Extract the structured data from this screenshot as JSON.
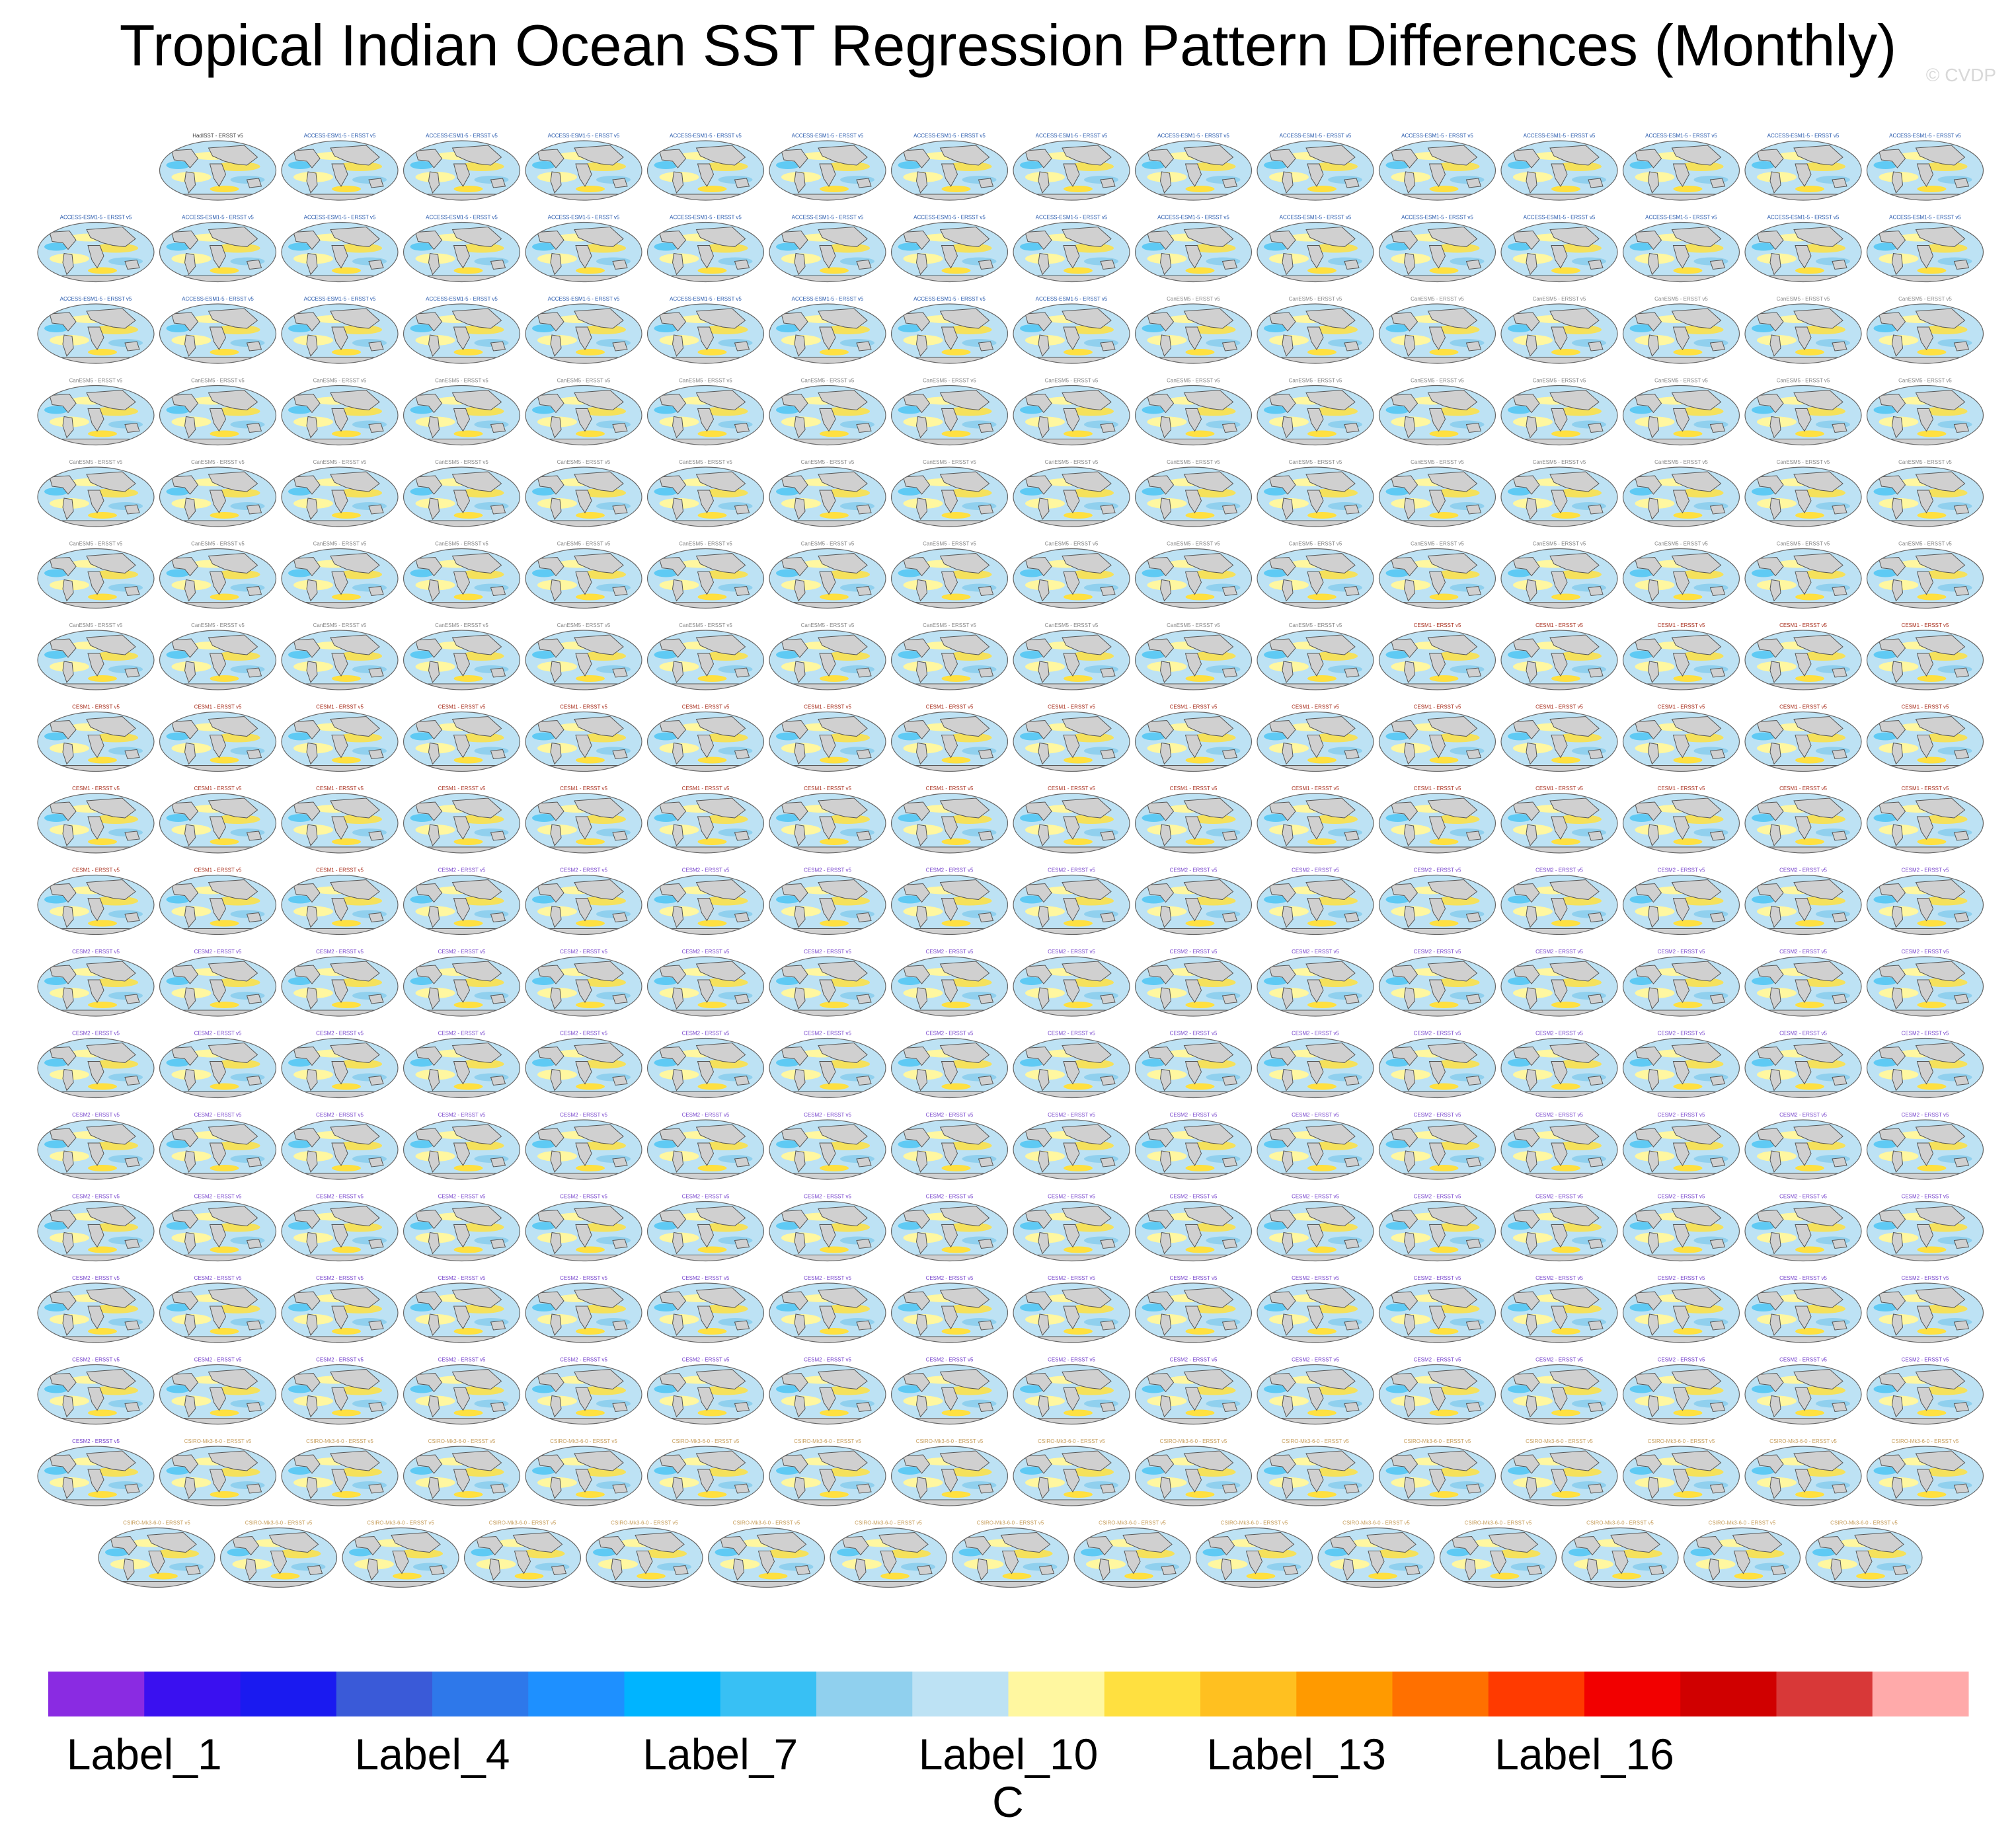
{
  "title": "Tropical Indian Ocean SST Regression Pattern Differences (Monthly)",
  "watermark": "© CVDP",
  "chart_data": {
    "type": "heatmap",
    "title": "Tropical Indian Ocean SST Regression Pattern Differences (Monthly)",
    "panel_grid": {
      "rows_full": 17,
      "columns": 16,
      "first_row_panels": 15,
      "last_row_panels": 15,
      "total_panels": 286
    },
    "panel_label_groups": [
      {
        "model": "HadISST",
        "reference": "ERSST v5",
        "count": 1,
        "label_color": "#333333"
      },
      {
        "model": "ACCESS-ESM1-5",
        "reference": "ERSST v5",
        "count": 39,
        "label_color": "#2255aa"
      },
      {
        "model": "CanESM5",
        "reference": "ERSST v5",
        "count": 66,
        "label_color": "#888888"
      },
      {
        "model": "CESM1",
        "reference": "ERSST v5",
        "count": 40,
        "label_color": "#aa3322"
      },
      {
        "model": "CESM2",
        "reference": "ERSST v5",
        "count": 110,
        "label_color": "#7744cc"
      },
      {
        "model": "CSIRO-Mk3-6-0",
        "reference": "ERSST v5",
        "count": 30,
        "label_color": "#c8a060"
      }
    ],
    "colorbar": {
      "unit": "C",
      "tick_labels": [
        "Label_1",
        "Label_4",
        "Label_7",
        "Label_10",
        "Label_13",
        "Label_16"
      ],
      "tick_bin_index": [
        1,
        4,
        7,
        10,
        13,
        16
      ],
      "colors": [
        "#8a2be2",
        "#3a10f0",
        "#1a1af0",
        "#3a5ad8",
        "#2e78ea",
        "#1e90ff",
        "#00b4ff",
        "#38c0f4",
        "#90d0ee",
        "#bde2f4",
        "#fff7a0",
        "#ffe040",
        "#ffc020",
        "#ff9a00",
        "#ff7000",
        "#ff3a00",
        "#f20000",
        "#d00000",
        "#d83838",
        "#ffaaaa"
      ]
    }
  }
}
